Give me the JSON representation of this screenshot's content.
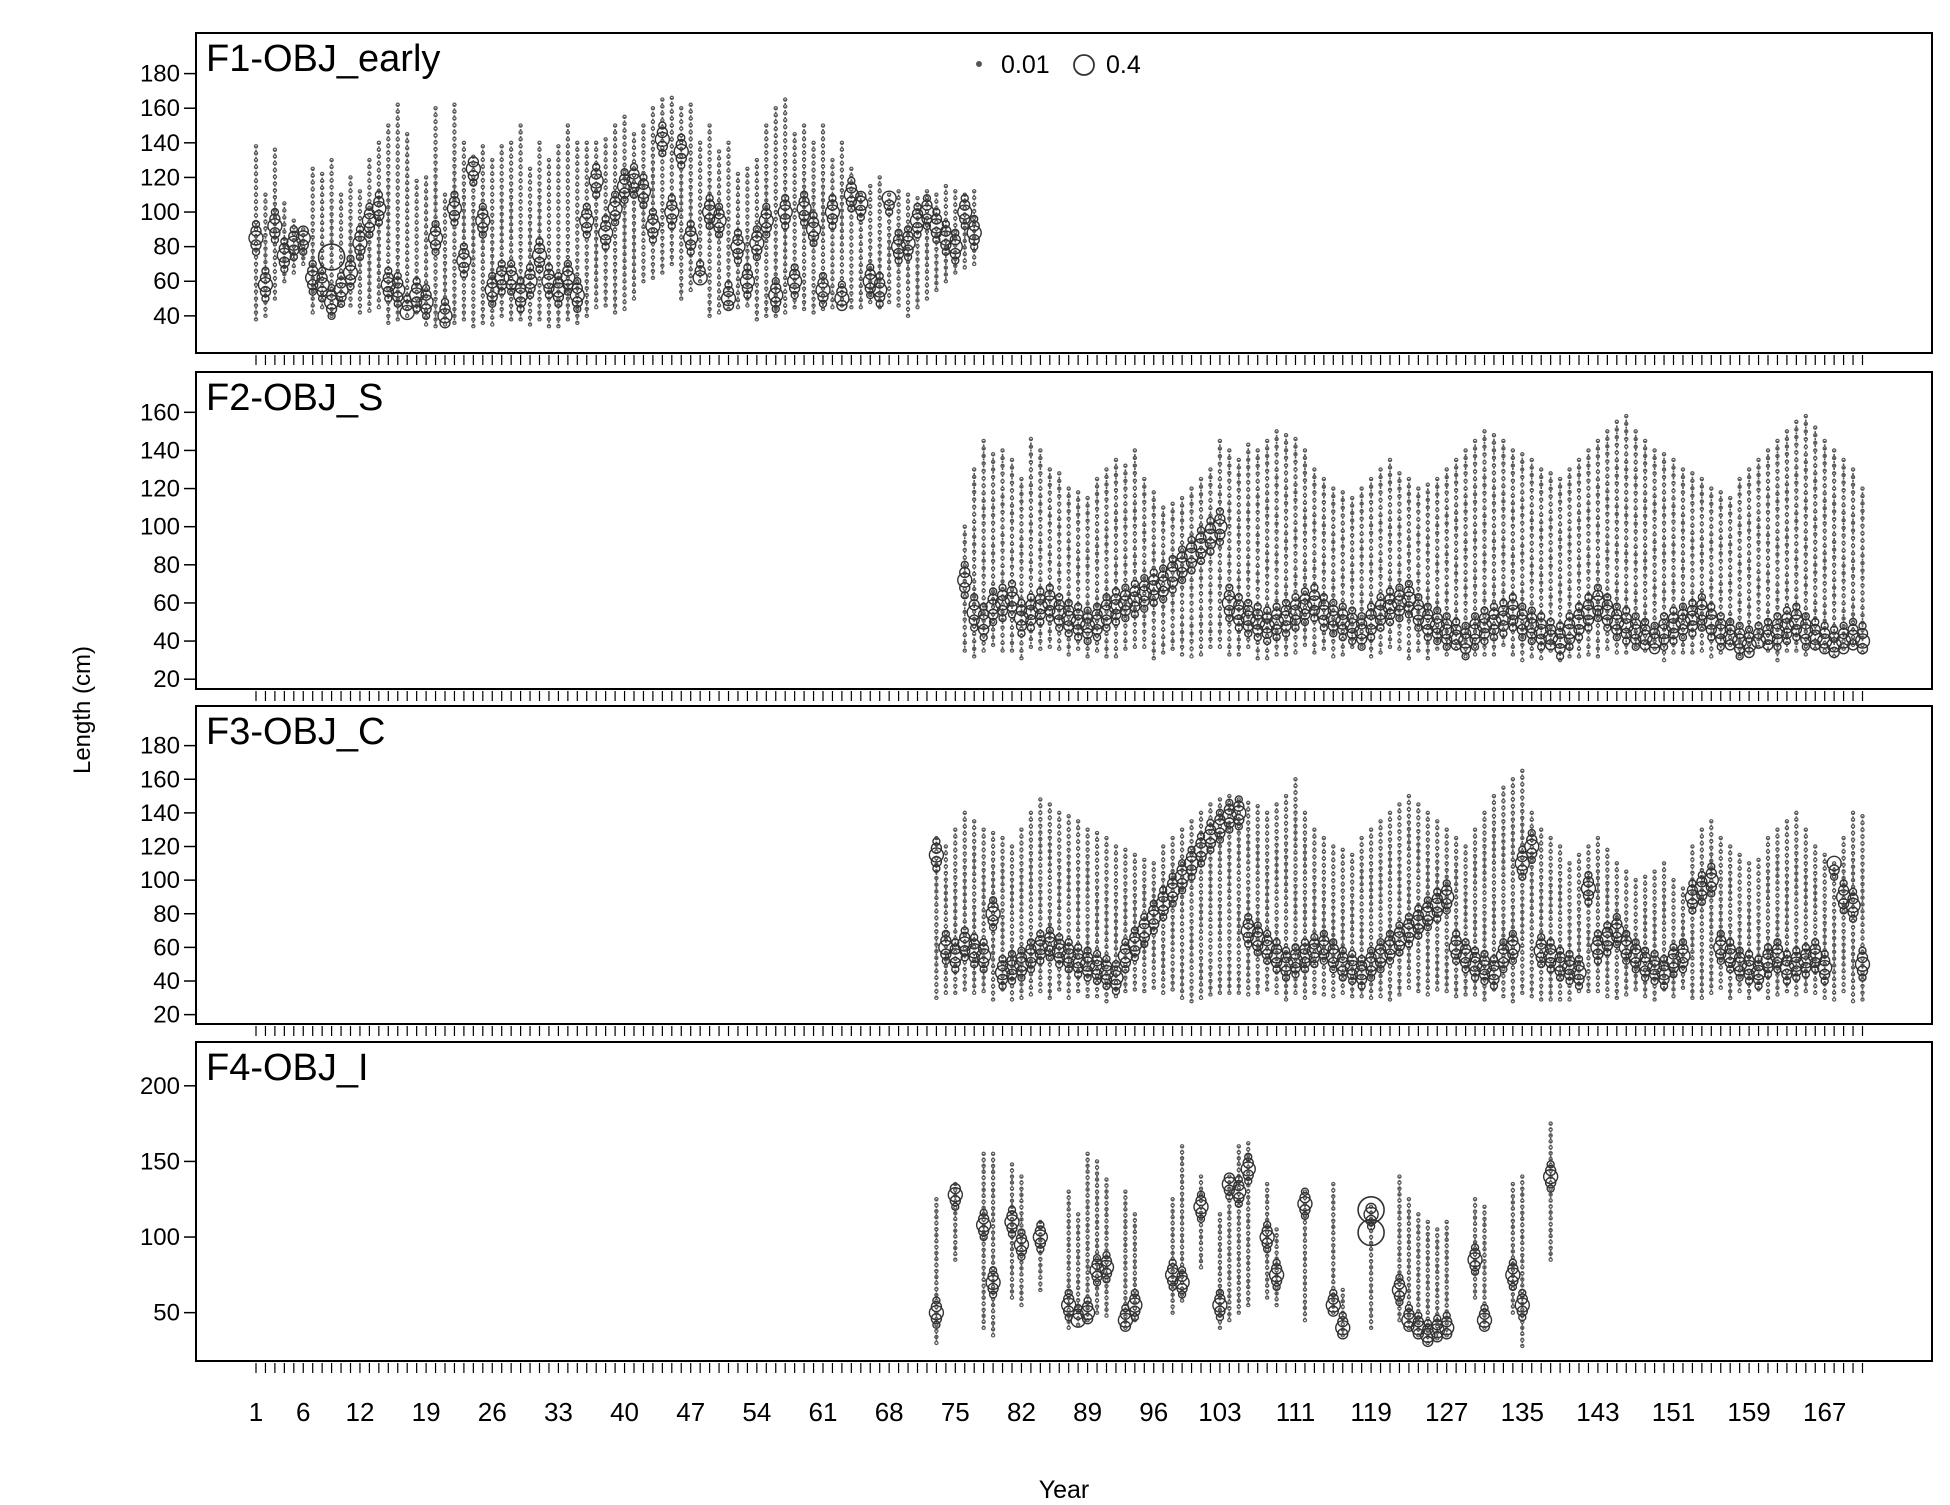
{
  "chart_data": {
    "type": "scatter",
    "subtype": "bubble",
    "xlabel": "Year",
    "ylabel": "Length (cm)",
    "x_range": [
      1,
      171
    ],
    "x_tick_labels": [
      "1",
      "6",
      "12",
      "19",
      "26",
      "33",
      "40",
      "47",
      "54",
      "61",
      "68",
      "75",
      "82",
      "89",
      "96",
      "103",
      "111",
      "119",
      "127",
      "135",
      "143",
      "151",
      "159",
      "167"
    ],
    "x_tick_positions": [
      1,
      6,
      12,
      19,
      26,
      33,
      40,
      47,
      54,
      61,
      68,
      75,
      82,
      89,
      96,
      103,
      111,
      119,
      127,
      135,
      143,
      151,
      159,
      167
    ],
    "legend": {
      "placement": "top-center",
      "entries": [
        {
          "label": "0.01",
          "size": 0.01
        },
        {
          "label": "0.4",
          "size": 0.4
        }
      ]
    },
    "marker_color": "#555555",
    "panels": [
      {
        "title": "F1-OBJ_early",
        "ylim": [
          22,
          200
        ],
        "y_ticks": [
          40,
          60,
          80,
          100,
          120,
          140,
          160,
          180
        ],
        "years": [
          1,
          2,
          3,
          4,
          5,
          6,
          7,
          8,
          9,
          10,
          11,
          12,
          13,
          14,
          15,
          16,
          17,
          18,
          19,
          20,
          21,
          22,
          23,
          24,
          25,
          26,
          27,
          28,
          29,
          30,
          31,
          32,
          33,
          34,
          35,
          36,
          37,
          38,
          39,
          40,
          41,
          42,
          43,
          44,
          45,
          46,
          47,
          48,
          49,
          50,
          51,
          52,
          53,
          54,
          55,
          56,
          57,
          58,
          59,
          60,
          61,
          62,
          63,
          64,
          65,
          66,
          67,
          68,
          69,
          70,
          71,
          72,
          73,
          74,
          75,
          76,
          77
        ],
        "min_len": [
          38,
          40,
          50,
          60,
          65,
          70,
          42,
          45,
          40,
          46,
          46,
          42,
          43,
          45,
          36,
          38,
          40,
          42,
          35,
          34,
          35,
          36,
          38,
          34,
          36,
          35,
          40,
          38,
          38,
          35,
          38,
          34,
          34,
          38,
          36,
          40,
          45,
          46,
          42,
          44,
          50,
          60,
          62,
          65,
          70,
          50,
          55,
          60,
          40,
          42,
          44,
          45,
          46,
          38,
          40,
          40,
          42,
          45,
          44,
          42,
          44,
          45,
          46,
          45,
          45,
          48,
          45,
          48,
          46,
          40,
          45,
          50,
          55,
          60,
          65,
          68,
          70
        ],
        "max_len": [
          138,
          110,
          136,
          105,
          95,
          90,
          125,
          122,
          130,
          110,
          120,
          112,
          130,
          140,
          150,
          162,
          145,
          118,
          120,
          160,
          110,
          162,
          140,
          132,
          138,
          130,
          138,
          140,
          150,
          125,
          140,
          130,
          138,
          150,
          140,
          140,
          140,
          142,
          150,
          155,
          145,
          150,
          160,
          165,
          166,
          160,
          162,
          140,
          150,
          135,
          140,
          122,
          125,
          130,
          150,
          160,
          165,
          145,
          150,
          140,
          150,
          130,
          140,
          125,
          110,
          115,
          120,
          110,
          112,
          110,
          108,
          112,
          110,
          115,
          112,
          110,
          112
        ],
        "mode_len": [
          85,
          58,
          92,
          75,
          82,
          85,
          62,
          58,
          48,
          55,
          65,
          82,
          95,
          102,
          58,
          55,
          42,
          52,
          48,
          85,
          40,
          102,
          72,
          125,
          95,
          55,
          62,
          62,
          52,
          60,
          75,
          60,
          55,
          62,
          52,
          95,
          118,
          88,
          102,
          115,
          118,
          112,
          92,
          142,
          100,
          135,
          85,
          62,
          100,
          95,
          50,
          80,
          60,
          82,
          95,
          52,
          100,
          60,
          102,
          90,
          55,
          100,
          50,
          110,
          105,
          60,
          55,
          108,
          80,
          82,
          95,
          100,
          92,
          85,
          80,
          100,
          88
        ],
        "bubble_year": 9,
        "bubble_len": 74
      },
      {
        "title": "F2-OBJ_S",
        "ylim": [
          18,
          178
        ],
        "y_ticks": [
          20,
          40,
          60,
          80,
          100,
          120,
          140,
          160
        ],
        "start_year": 76,
        "end_year": 171,
        "min_len": 30,
        "max_len": [
          100,
          130,
          145,
          138,
          140,
          135,
          125,
          146,
          140,
          130,
          128,
          120,
          118,
          115,
          125,
          130,
          135,
          132,
          140,
          125,
          118,
          110,
          112,
          115,
          120,
          125,
          130,
          145,
          140,
          135,
          143,
          140,
          145,
          150,
          148,
          146,
          140,
          130,
          125,
          120,
          118,
          115,
          120,
          125,
          130,
          135,
          128,
          125,
          120,
          122,
          125,
          130,
          135,
          140,
          145,
          150,
          148,
          145,
          140,
          138,
          135,
          130,
          128,
          125,
          130,
          135,
          140,
          145,
          150,
          155,
          158,
          150,
          145,
          140,
          138,
          135,
          130,
          128,
          125,
          120,
          118,
          115,
          125,
          130,
          135,
          140,
          145,
          150,
          155,
          158,
          152,
          145,
          140,
          135,
          130,
          120
        ],
        "mode_len": [
          72,
          55,
          50,
          58,
          60,
          62,
          52,
          55,
          58,
          60,
          55,
          52,
          50,
          48,
          50,
          55,
          58,
          60,
          62,
          65,
          68,
          70,
          75,
          80,
          85,
          90,
          95,
          100,
          60,
          55,
          52,
          50,
          48,
          50,
          52,
          55,
          58,
          60,
          55,
          52,
          50,
          48,
          45,
          50,
          55,
          58,
          60,
          62,
          55,
          50,
          48,
          45,
          42,
          40,
          45,
          48,
          50,
          52,
          55,
          50,
          48,
          45,
          42,
          40,
          45,
          50,
          55,
          60,
          55,
          50,
          48,
          45,
          42,
          40,
          45,
          48,
          50,
          52,
          55,
          50,
          45,
          42,
          40,
          38,
          40,
          42,
          45,
          48,
          50,
          45,
          42,
          40,
          38,
          40,
          42,
          40
        ]
      },
      {
        "title": "F3-OBJ_C",
        "ylim": [
          18,
          200
        ],
        "y_ticks": [
          20,
          40,
          60,
          80,
          100,
          120,
          140,
          160,
          180
        ],
        "start_year": 73,
        "end_year": 171,
        "min_len": 28,
        "max_len": [
          125,
          120,
          130,
          140,
          135,
          130,
          128,
          125,
          120,
          130,
          140,
          148,
          145,
          140,
          138,
          135,
          130,
          128,
          125,
          120,
          118,
          115,
          112,
          110,
          120,
          125,
          130,
          135,
          140,
          145,
          148,
          150,
          148,
          146,
          144,
          140,
          145,
          150,
          160,
          140,
          130,
          125,
          120,
          118,
          115,
          125,
          130,
          135,
          140,
          145,
          150,
          145,
          140,
          135,
          130,
          125,
          120,
          130,
          140,
          150,
          155,
          160,
          165,
          140,
          130,
          125,
          120,
          110,
          115,
          120,
          125,
          118,
          110,
          105,
          100,
          102,
          105,
          110,
          100,
          95,
          120,
          130,
          135,
          125,
          120,
          115,
          110,
          112,
          125,
          130,
          135,
          140,
          130,
          120,
          115,
          110,
          125,
          140,
          138
        ],
        "mode_len": [
          115,
          60,
          55,
          62,
          58,
          55,
          80,
          45,
          48,
          50,
          55,
          60,
          62,
          58,
          55,
          52,
          50,
          48,
          45,
          42,
          55,
          62,
          70,
          78,
          86,
          94,
          102,
          110,
          118,
          126,
          132,
          138,
          140,
          70,
          65,
          60,
          55,
          50,
          52,
          55,
          58,
          60,
          55,
          50,
          48,
          45,
          50,
          55,
          60,
          65,
          70,
          75,
          80,
          85,
          90,
          60,
          55,
          50,
          48,
          45,
          55,
          60,
          110,
          120,
          58,
          55,
          50,
          48,
          45,
          95,
          60,
          65,
          70,
          60,
          55,
          50,
          48,
          45,
          52,
          55,
          90,
          95,
          100,
          60,
          55,
          50,
          48,
          45,
          52,
          55,
          48,
          50,
          52,
          55,
          48,
          110,
          90,
          85,
          50
        ]
      },
      {
        "title": "F4-OBJ_I",
        "ylim": [
          22,
          225
        ],
        "y_ticks": [
          50,
          100,
          150,
          200
        ],
        "years": [
          73,
          75,
          78,
          79,
          81,
          82,
          84,
          87,
          88,
          89,
          90,
          91,
          93,
          94,
          98,
          99,
          101,
          103,
          104,
          105,
          106,
          108,
          109,
          112,
          115,
          116,
          119,
          122,
          123,
          124,
          125,
          126,
          127,
          130,
          131,
          134,
          135,
          138
        ],
        "min_len": [
          30,
          85,
          40,
          35,
          60,
          55,
          65,
          40,
          42,
          45,
          50,
          48,
          40,
          45,
          50,
          58,
          80,
          40,
          45,
          50,
          55,
          60,
          55,
          45,
          50,
          35,
          40,
          45,
          40,
          35,
          30,
          33,
          35,
          60,
          40,
          50,
          28,
          85
        ],
        "max_len": [
          125,
          135,
          155,
          155,
          148,
          140,
          110,
          130,
          115,
          155,
          150,
          138,
          130,
          115,
          125,
          160,
          140,
          115,
          140,
          160,
          162,
          135,
          105,
          130,
          135,
          65,
          120,
          140,
          125,
          115,
          110,
          105,
          110,
          125,
          120,
          135,
          140,
          175
        ],
        "mode_len": [
          50,
          128,
          108,
          70,
          110,
          95,
          100,
          55,
          45,
          50,
          78,
          80,
          45,
          55,
          75,
          70,
          120,
          55,
          135,
          130,
          145,
          100,
          75,
          122,
          55,
          40,
          115,
          65,
          45,
          40,
          35,
          38,
          40,
          85,
          45,
          75,
          55,
          140
        ],
        "bubble_year": 119,
        "bubble_lens": [
          118,
          103
        ]
      }
    ]
  }
}
